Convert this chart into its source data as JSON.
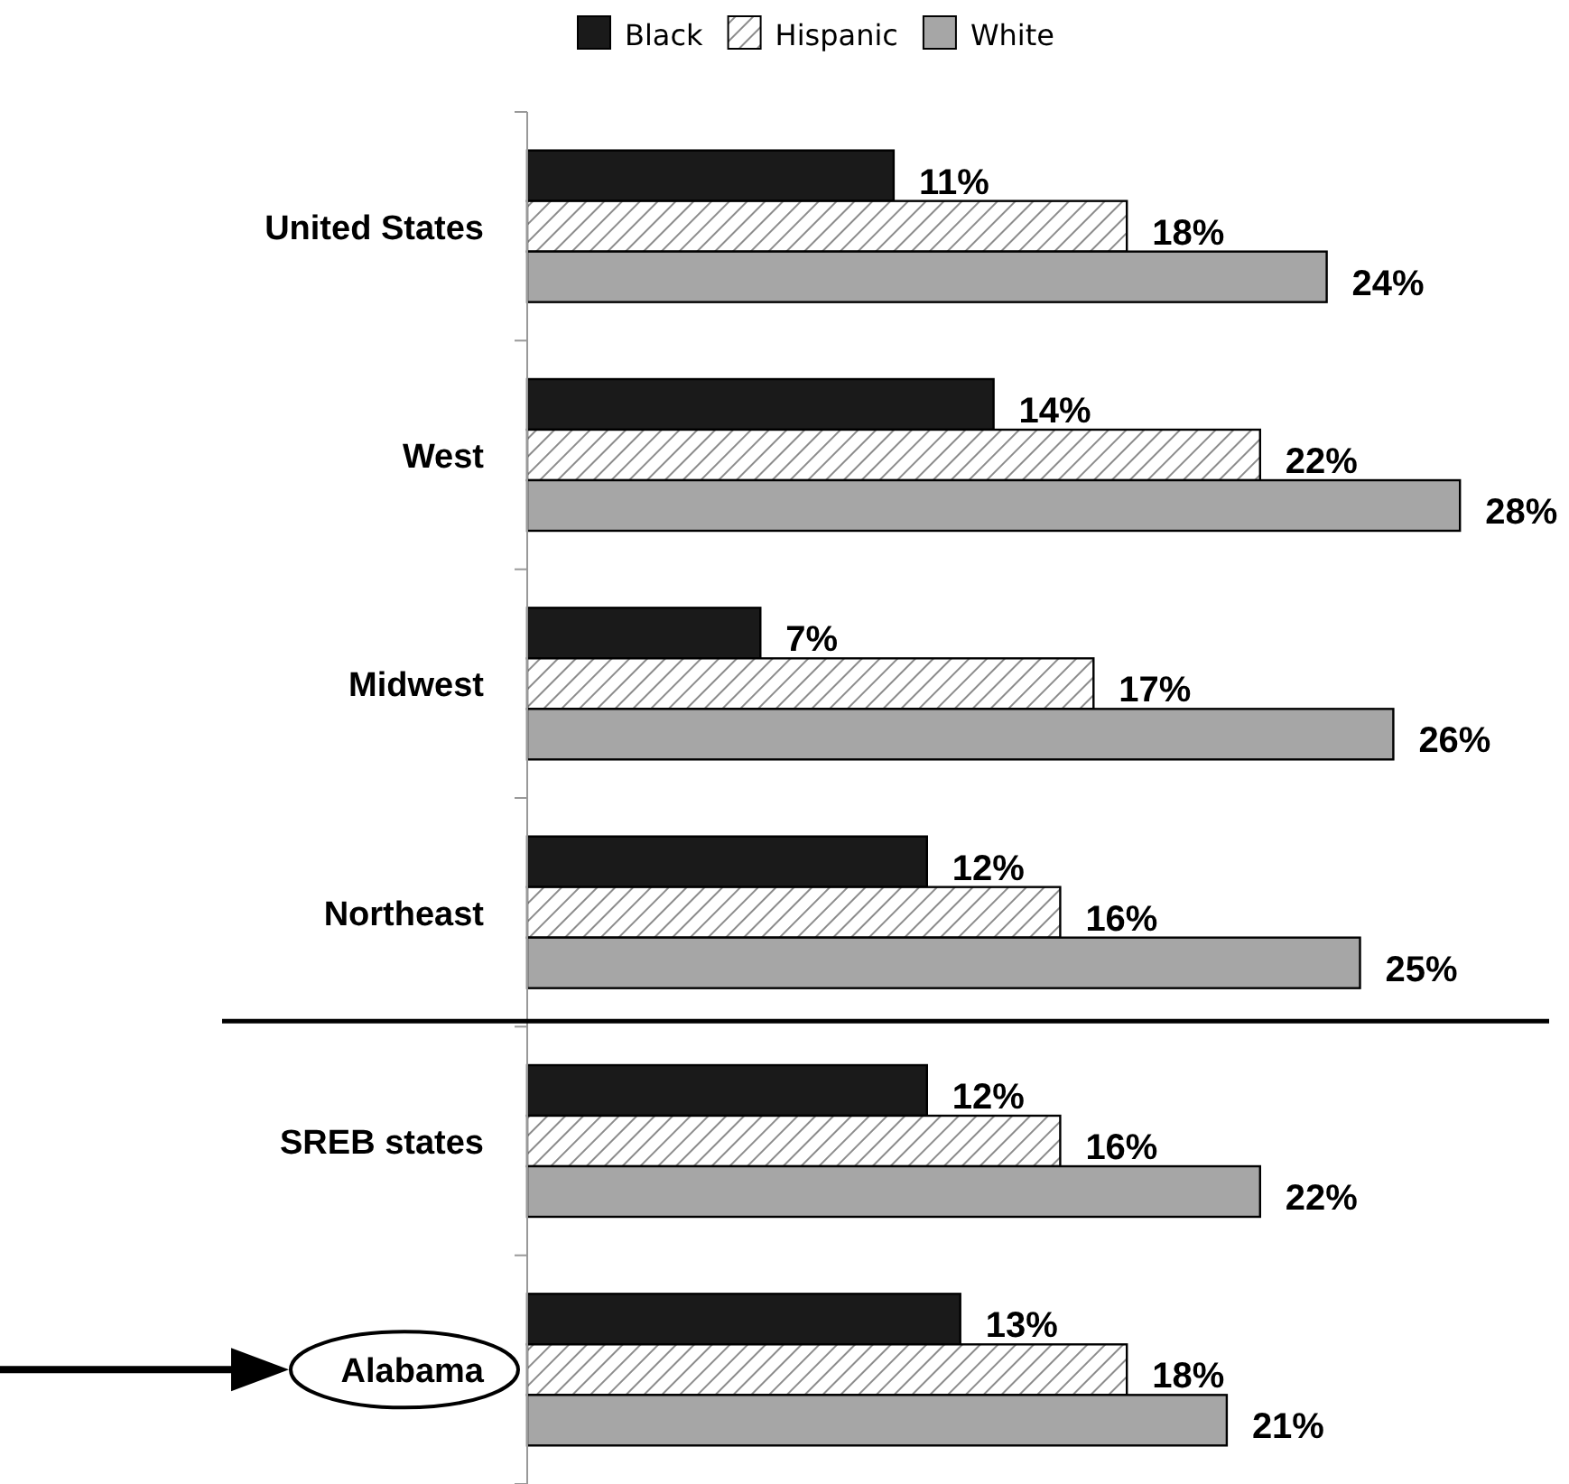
{
  "chart_data": {
    "type": "bar",
    "orientation": "horizontal",
    "categories": [
      "United States",
      "West",
      "Midwest",
      "Northeast",
      "SREB states",
      "Alabama"
    ],
    "series": [
      {
        "name": "Black",
        "color": "#1a1a1a",
        "values": [
          11,
          14,
          7,
          12,
          12,
          13
        ],
        "value_labels": [
          "11%",
          "14%",
          "7%",
          "12%",
          "12%",
          "13%"
        ]
      },
      {
        "name": "Hispanic",
        "color": "#000000",
        "values": [
          18,
          22,
          17,
          16,
          16,
          18
        ],
        "value_labels": [
          "18%",
          "22%",
          "17%",
          "16%",
          "16%",
          "18%"
        ]
      },
      {
        "name": "White",
        "color": "#a6a6a6",
        "values": [
          24,
          28,
          26,
          25,
          22,
          21
        ],
        "value_labels": [
          "24%",
          "28%",
          "26%",
          "25%",
          "22%",
          "21%"
        ]
      }
    ],
    "tick_labels": "y",
    "legend": "top"
  }
}
